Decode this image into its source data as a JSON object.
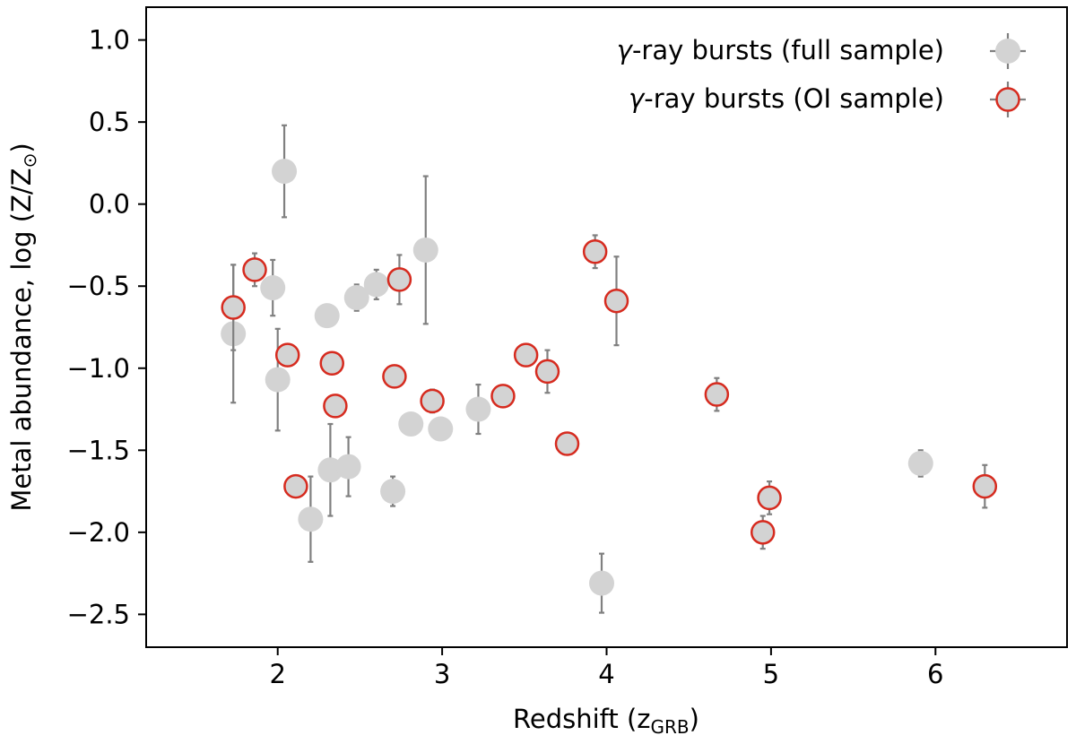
{
  "chart_data": {
    "type": "scatter",
    "title": "",
    "xlabel_main": "Redshift (z",
    "xlabel_sub": "GRB",
    "xlabel_end": ")",
    "ylabel_main": "Metal abundance, log (Z/Z",
    "ylabel_sun": "⊙",
    "ylabel_end": ")",
    "xlim": [
      1.2,
      6.8
    ],
    "ylim": [
      -2.7,
      1.2
    ],
    "xticks": [
      2,
      3,
      4,
      5,
      6
    ],
    "xtick_labels": [
      "2",
      "3",
      "4",
      "5",
      "6"
    ],
    "yticks": [
      1.0,
      0.5,
      0.0,
      -0.5,
      -1.0,
      -1.5,
      -2.0,
      -2.5
    ],
    "ytick_labels": [
      "1.0",
      "0.5",
      "0.0",
      "−0.5",
      "−1.0",
      "−1.5",
      "−2.0",
      "−2.5"
    ],
    "grid": false,
    "legend_position": "top-right",
    "legend": [
      {
        "label_prefix": "γ",
        "label_rest": "-ray bursts (full sample)",
        "style": "full"
      },
      {
        "label_prefix": "γ",
        "label_rest": "-ray bursts (OI sample)",
        "style": "oi"
      }
    ],
    "colors": {
      "marker_fill": "#d3d3d3",
      "oi_edge": "#d62b1f",
      "errorbar": "#808080"
    },
    "series": [
      {
        "style": "full",
        "points": [
          {
            "x": 1.73,
            "y": -0.79,
            "lo": 0.42,
            "hi": 0.42
          },
          {
            "x": 1.97,
            "y": -0.51,
            "lo": 0.17,
            "hi": 0.17
          },
          {
            "x": 2.0,
            "y": -1.07,
            "lo": 0.31,
            "hi": 0.31
          },
          {
            "x": 2.04,
            "y": 0.2,
            "lo": 0.28,
            "hi": 0.28
          },
          {
            "x": 2.2,
            "y": -1.92,
            "lo": 0.26,
            "hi": 0.26
          },
          {
            "x": 2.3,
            "y": -0.68,
            "lo": 0.0,
            "hi": 0.0
          },
          {
            "x": 2.32,
            "y": -1.62,
            "lo": 0.28,
            "hi": 0.28
          },
          {
            "x": 2.43,
            "y": -1.6,
            "lo": 0.18,
            "hi": 0.18
          },
          {
            "x": 2.48,
            "y": -0.57,
            "lo": 0.08,
            "hi": 0.08
          },
          {
            "x": 2.6,
            "y": -0.49,
            "lo": 0.09,
            "hi": 0.09
          },
          {
            "x": 2.7,
            "y": -1.75,
            "lo": 0.09,
            "hi": 0.09
          },
          {
            "x": 2.81,
            "y": -1.34,
            "lo": 0.0,
            "hi": 0.0
          },
          {
            "x": 2.9,
            "y": -0.28,
            "lo": 0.45,
            "hi": 0.45
          },
          {
            "x": 2.99,
            "y": -1.37,
            "lo": 0.0,
            "hi": 0.0
          },
          {
            "x": 3.22,
            "y": -1.25,
            "lo": 0.15,
            "hi": 0.15
          },
          {
            "x": 3.97,
            "y": -2.31,
            "lo": 0.18,
            "hi": 0.18
          },
          {
            "x": 5.91,
            "y": -1.58,
            "lo": 0.08,
            "hi": 0.08
          }
        ]
      },
      {
        "style": "oi",
        "points": [
          {
            "x": 1.73,
            "y": -0.63,
            "lo": 0.26,
            "hi": 0.26
          },
          {
            "x": 1.86,
            "y": -0.4,
            "lo": 0.1,
            "hi": 0.1
          },
          {
            "x": 2.06,
            "y": -0.92,
            "lo": 0.0,
            "hi": 0.0
          },
          {
            "x": 2.11,
            "y": -1.72,
            "lo": 0.0,
            "hi": 0.0
          },
          {
            "x": 2.33,
            "y": -0.97,
            "lo": 0.0,
            "hi": 0.0
          },
          {
            "x": 2.35,
            "y": -1.23,
            "lo": 0.0,
            "hi": 0.0
          },
          {
            "x": 2.71,
            "y": -1.05,
            "lo": 0.0,
            "hi": 0.0
          },
          {
            "x": 2.74,
            "y": -0.46,
            "lo": 0.15,
            "hi": 0.15
          },
          {
            "x": 2.94,
            "y": -1.2,
            "lo": 0.07,
            "hi": 0.07
          },
          {
            "x": 3.37,
            "y": -1.17,
            "lo": 0.0,
            "hi": 0.0
          },
          {
            "x": 3.51,
            "y": -0.92,
            "lo": 0.0,
            "hi": 0.0
          },
          {
            "x": 3.64,
            "y": -1.02,
            "lo": 0.13,
            "hi": 0.13
          },
          {
            "x": 3.76,
            "y": -1.46,
            "lo": 0.0,
            "hi": 0.0
          },
          {
            "x": 3.93,
            "y": -0.29,
            "lo": 0.1,
            "hi": 0.1
          },
          {
            "x": 4.06,
            "y": -0.59,
            "lo": 0.27,
            "hi": 0.27
          },
          {
            "x": 4.67,
            "y": -1.16,
            "lo": 0.1,
            "hi": 0.1
          },
          {
            "x": 4.95,
            "y": -2.0,
            "lo": 0.1,
            "hi": 0.1
          },
          {
            "x": 4.99,
            "y": -1.79,
            "lo": 0.1,
            "hi": 0.1
          },
          {
            "x": 6.3,
            "y": -1.72,
            "lo": 0.13,
            "hi": 0.13
          }
        ]
      }
    ]
  }
}
